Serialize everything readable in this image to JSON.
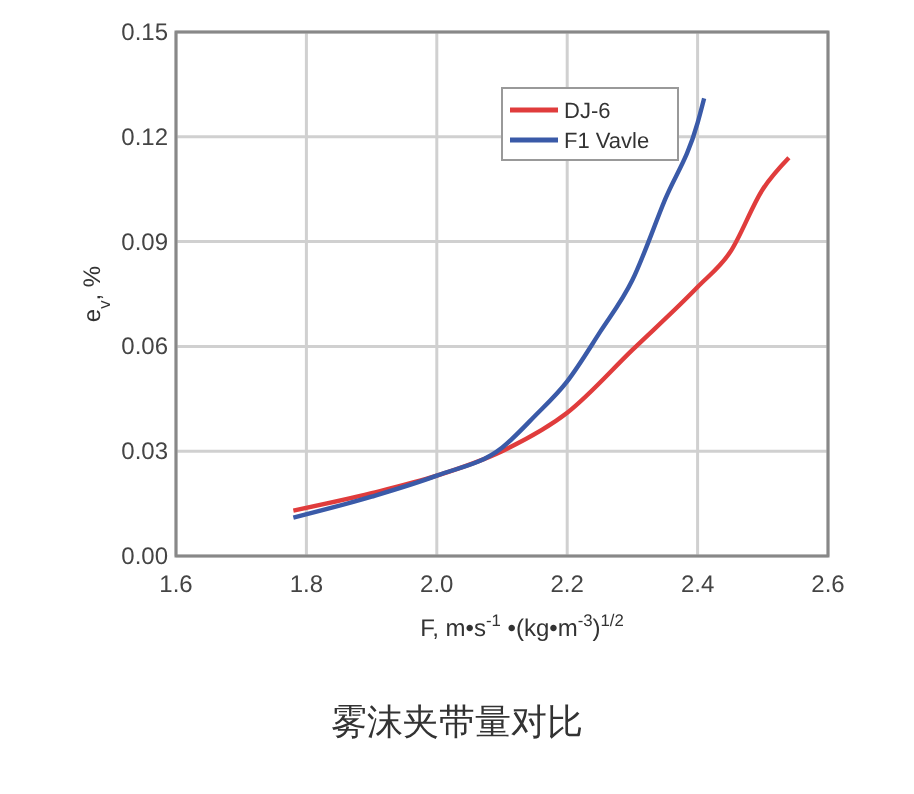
{
  "chart_data": {
    "type": "line",
    "title": "雾沫夹带量对比",
    "xlabel": "F, m•s$^{-1}$ •(kg•m$^{-3}$)$^{1/2}$",
    "ylabel": "e$_{v}$, %",
    "xlim": [
      1.6,
      2.6
    ],
    "xticks": [
      {
        "value": 1.6,
        "label": "1.6"
      },
      {
        "value": 1.8,
        "label": "1.8"
      },
      {
        "value": 2.0,
        "label": "2.0"
      },
      {
        "value": 2.2,
        "label": "2.2"
      },
      {
        "value": 2.4,
        "label": "2.4"
      },
      {
        "value": 2.6,
        "label": "2.6"
      }
    ],
    "ylim": [
      0,
      0.15
    ],
    "yticks": [
      {
        "value": 0,
        "label": "0.00"
      },
      {
        "value": 0.03,
        "label": "0.03"
      },
      {
        "value": 0.06,
        "label": "0.06"
      },
      {
        "value": 0.09,
        "label": "0.09"
      },
      {
        "value": 0.12,
        "label": "0.12"
      },
      {
        "value": 0.15,
        "label": "0.15"
      }
    ],
    "grid": true,
    "legend": "top",
    "marker": "none",
    "line_style": "solid",
    "series": [
      {
        "name": "DJ-6",
        "color": "#e03c3c",
        "x": [
          1.78,
          1.9,
          2.0,
          2.1,
          2.2,
          2.3,
          2.4,
          2.45,
          2.5,
          2.54
        ],
        "values": [
          0.013,
          0.018,
          0.023,
          0.03,
          0.041,
          0.059,
          0.077,
          0.087,
          0.105,
          0.114
        ]
      },
      {
        "name": "F1 Vavle",
        "color": "#3a5aa8",
        "x": [
          1.78,
          1.9,
          2.0,
          2.1,
          2.15,
          2.2,
          2.25,
          2.3,
          2.35,
          2.4,
          2.41
        ],
        "values": [
          0.011,
          0.017,
          0.023,
          0.031,
          0.04,
          0.05,
          0.064,
          0.079,
          0.102,
          0.124,
          0.131
        ]
      }
    ]
  }
}
